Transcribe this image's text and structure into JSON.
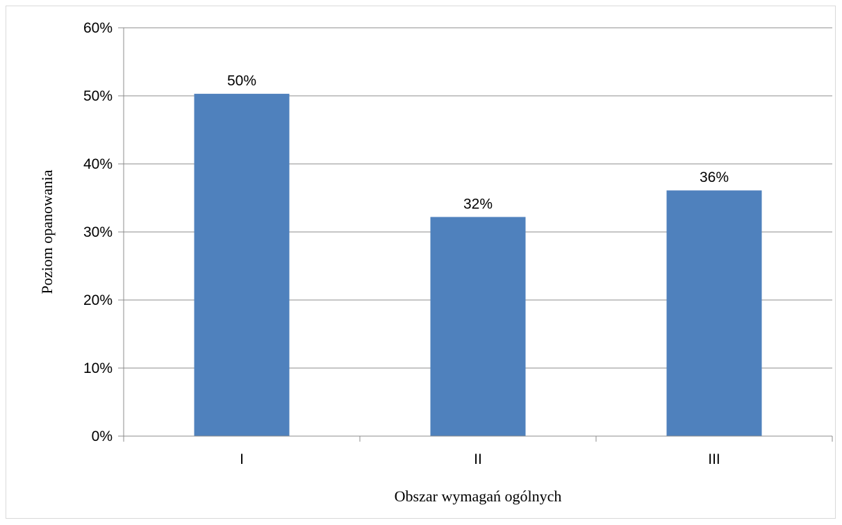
{
  "chart_data": {
    "type": "bar",
    "categories": [
      "I",
      "II",
      "III"
    ],
    "values": [
      50.3,
      32.2,
      36.1
    ],
    "data_labels": [
      "50%",
      "32%",
      "36%"
    ],
    "title": "",
    "xlabel": "Obszar wymagań ogólnych",
    "ylabel": "Poziom opanowania",
    "ylim": [
      0,
      60
    ],
    "yticks": [
      0,
      10,
      20,
      30,
      40,
      50,
      60
    ],
    "ytick_labels": [
      "0%",
      "10%",
      "20%",
      "30%",
      "40%",
      "50%",
      "60%"
    ],
    "grid": true,
    "legend": "none",
    "bar_color": "#4f81bd",
    "gridline_color": "#8c8c8c"
  }
}
